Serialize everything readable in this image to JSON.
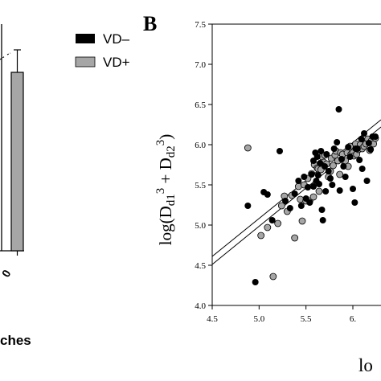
{
  "legend": {
    "items": [
      {
        "label": "VD–",
        "color": "#000000"
      },
      {
        "label": "VD+",
        "color": "#a6a6a6"
      }
    ]
  },
  "panel_a": {
    "bar_fill": "#a6a6a6",
    "tick_fragment": "0",
    "xlabel_fragment": "ches"
  },
  "chart_data": {
    "type": "scatter",
    "panel_label": "B",
    "ylabel_parts": [
      "log(D",
      "d1",
      "3",
      " + D",
      "d2",
      "3",
      ")"
    ],
    "xlabel_fragment": "lo",
    "xlim": [
      4.5,
      6.3
    ],
    "ylim": [
      4.0,
      7.5
    ],
    "xticks": [
      4.5,
      5.0,
      5.5,
      6.0
    ],
    "xtick_labels": [
      "4.5",
      "5.0",
      "5.5",
      "6."
    ],
    "yticks": [
      4.0,
      4.5,
      5.0,
      5.5,
      6.0,
      6.5,
      7.0,
      7.5
    ],
    "ytick_labels": [
      "4.0",
      "4.5",
      "5.0",
      "5.5",
      "6.0",
      "6.5",
      "7.0",
      "7.5"
    ],
    "grid": false,
    "series": [
      {
        "name": "VD–",
        "color": "#000000",
        "x": [
          4.88,
          4.96,
          5.05,
          5.09,
          5.14,
          5.22,
          5.28,
          5.33,
          5.38,
          5.42,
          5.45,
          5.48,
          5.5,
          5.52,
          5.54,
          5.56,
          5.58,
          5.58,
          5.6,
          5.61,
          5.62,
          5.63,
          5.64,
          5.65,
          5.66,
          5.67,
          5.68,
          5.7,
          5.71,
          5.72,
          5.74,
          5.76,
          5.78,
          5.8,
          5.83,
          5.85,
          5.86,
          5.88,
          5.9,
          5.92,
          5.95,
          5.97,
          6.0,
          6.02,
          6.03,
          6.05,
          6.07,
          6.09,
          6.1,
          6.12,
          6.15,
          6.17,
          6.19,
          6.21,
          6.24
        ],
        "y": [
          5.24,
          4.29,
          5.41,
          5.38,
          5.06,
          5.92,
          5.3,
          5.21,
          5.39,
          5.55,
          5.24,
          5.6,
          5.33,
          5.47,
          5.28,
          5.63,
          5.8,
          5.48,
          5.9,
          5.55,
          5.85,
          5.62,
          5.51,
          5.77,
          5.92,
          5.19,
          5.06,
          5.73,
          5.42,
          5.88,
          5.67,
          5.58,
          5.5,
          5.95,
          6.03,
          6.44,
          5.43,
          5.82,
          5.73,
          5.6,
          5.97,
          5.85,
          5.45,
          5.28,
          5.95,
          5.95,
          5.81,
          6.07,
          5.7,
          6.14,
          5.55,
          6.02,
          5.94,
          6.1,
          6.1
        ]
      },
      {
        "name": "VD+",
        "color": "#a6a6a6",
        "x": [
          4.88,
          5.02,
          5.09,
          5.15,
          5.2,
          5.24,
          5.27,
          5.3,
          5.35,
          5.38,
          5.42,
          5.44,
          5.46,
          5.48,
          5.5,
          5.52,
          5.54,
          5.56,
          5.58,
          5.59,
          5.61,
          5.62,
          5.63,
          5.64,
          5.66,
          5.67,
          5.69,
          5.7,
          5.72,
          5.74,
          5.76,
          5.77,
          5.79,
          5.81,
          5.82,
          5.84,
          5.86,
          5.87,
          5.89,
          5.9,
          5.92,
          5.94,
          5.95,
          5.97,
          5.98,
          6.0,
          6.01,
          6.03,
          6.04,
          6.06,
          6.08,
          6.1,
          6.12,
          6.14,
          6.16,
          6.18,
          6.2,
          6.22,
          6.24
        ],
        "y": [
          5.96,
          4.87,
          4.97,
          4.36,
          5.02,
          5.24,
          5.36,
          5.17,
          5.37,
          4.84,
          5.48,
          5.32,
          5.05,
          5.5,
          5.3,
          5.58,
          5.3,
          5.64,
          5.35,
          5.75,
          5.53,
          5.71,
          5.7,
          5.42,
          5.69,
          5.85,
          5.78,
          5.87,
          5.76,
          5.6,
          5.67,
          5.83,
          5.74,
          5.87,
          5.92,
          5.8,
          5.63,
          5.9,
          5.88,
          5.8,
          5.8,
          5.9,
          5.73,
          5.98,
          5.88,
          5.9,
          5.86,
          6.01,
          5.88,
          5.94,
          6.0,
          5.95,
          5.98,
          6.01,
          6.07,
          5.93,
          6.05,
          6.01,
          6.08
        ]
      }
    ],
    "fit_lines": [
      {
        "name": "VD–",
        "x": [
          4.5,
          6.3
        ],
        "y": [
          4.61,
          6.31
        ]
      },
      {
        "name": "VD+",
        "x": [
          4.5,
          6.3
        ],
        "y": [
          4.51,
          6.22
        ]
      }
    ]
  }
}
